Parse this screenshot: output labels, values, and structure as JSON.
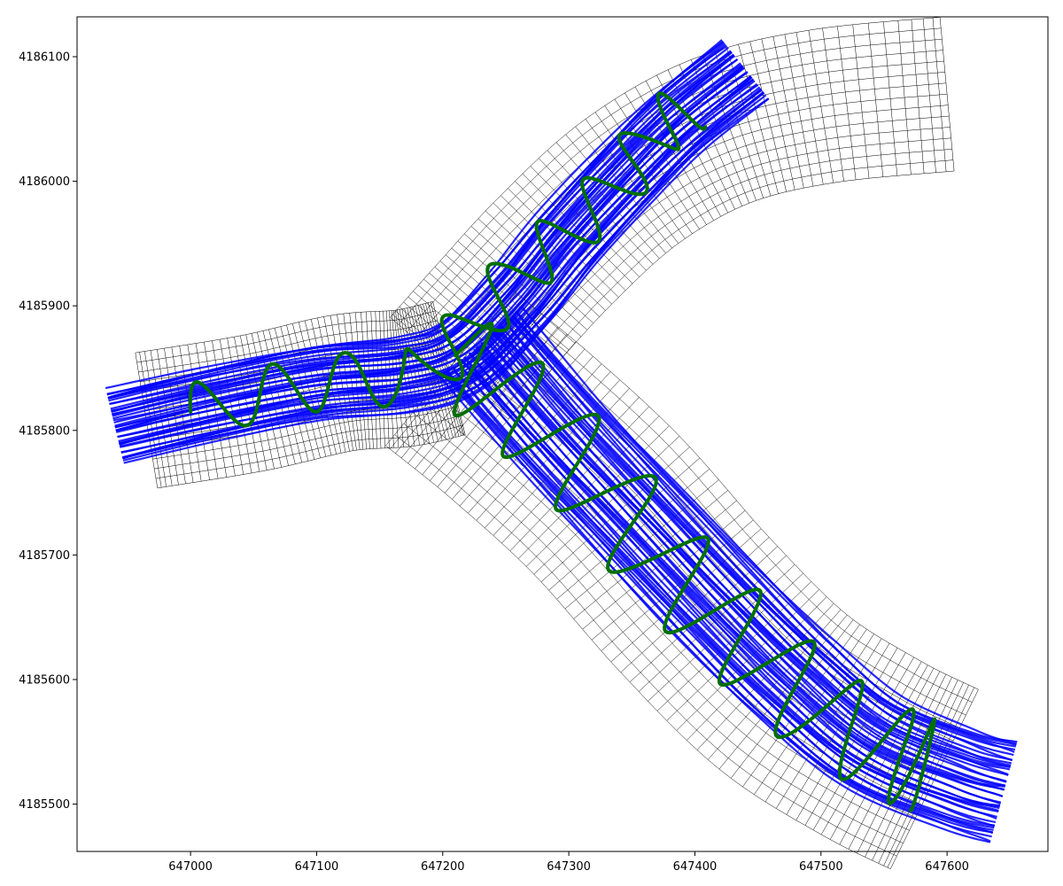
{
  "chart_data": {
    "type": "line",
    "title": "",
    "xlabel": "",
    "ylabel": "",
    "xlim": [
      646910,
      647680
    ],
    "ylim": [
      4185462,
      4186132
    ],
    "x_ticks": [
      647000,
      647100,
      647200,
      647300,
      647400,
      647500,
      647600
    ],
    "x_tick_labels": [
      "647000",
      "647100",
      "647200",
      "647300",
      "647400",
      "647500",
      "647600"
    ],
    "y_ticks": [
      4185500,
      4185600,
      4185700,
      4185800,
      4185900,
      4186000,
      4186100
    ],
    "y_tick_labels": [
      "4185500",
      "4185600",
      "4185700",
      "4185800",
      "4185900",
      "4186000",
      "4186100"
    ],
    "grid": false,
    "legend": "none",
    "colors": {
      "mesh": "#000000",
      "tracks": "#0000ff",
      "survey": "#007000"
    },
    "mesh": {
      "description_free": true,
      "branches": [
        {
          "centerline": [
            [
              646965,
              4185808
            ],
            [
              647050,
              4185822
            ],
            [
              647120,
              4185838
            ],
            [
              647170,
              4185842
            ],
            [
              647205,
              4185850
            ]
          ],
          "half_width": 55
        },
        {
          "centerline": [
            [
              647205,
              4185850
            ],
            [
              647240,
              4185890
            ],
            [
              647290,
              4185945
            ],
            [
              647350,
              4186000
            ],
            [
              647420,
              4186040
            ],
            [
              647500,
              4186060
            ],
            [
              647600,
              4186070
            ]
          ],
          "half_width": 62
        },
        {
          "centerline": [
            [
              647205,
              4185850
            ],
            [
              647260,
              4185805
            ],
            [
              647330,
              4185740
            ],
            [
              647400,
              4185660
            ],
            [
              647470,
              4185590
            ],
            [
              647540,
              4185545
            ],
            [
              647590,
              4185520
            ]
          ],
          "half_width": 80
        }
      ]
    },
    "series": [
      {
        "role": "tracks",
        "centerline": [
          [
            646940,
            4185803
          ],
          [
            647020,
            4185822
          ],
          [
            647100,
            4185838
          ],
          [
            647170,
            4185845
          ],
          [
            647215,
            4185860
          ],
          [
            647260,
            4185905
          ],
          [
            647300,
            4185955
          ],
          [
            647350,
            4186010
          ],
          [
            647390,
            4186050
          ],
          [
            647440,
            4186090
          ]
        ],
        "half_width": 30
      },
      {
        "role": "tracks",
        "centerline": [
          [
            647230,
            4185870
          ],
          [
            647290,
            4185800
          ],
          [
            647350,
            4185735
          ],
          [
            647420,
            4185660
          ],
          [
            647480,
            4185600
          ],
          [
            647540,
            4185550
          ],
          [
            647610,
            4185520
          ],
          [
            647645,
            4185510
          ]
        ],
        "half_width": 42
      },
      {
        "role": "survey",
        "centerline": [
          [
            647000,
            4185815
          ],
          [
            647060,
            4185830
          ],
          [
            647120,
            4185840
          ],
          [
            647180,
            4185845
          ],
          [
            647220,
            4185880
          ],
          [
            647260,
            4185925
          ],
          [
            647300,
            4185960
          ],
          [
            647340,
            4186000
          ],
          [
            647370,
            4186040
          ],
          [
            647395,
            4186060
          ]
        ],
        "half_width": 22
      },
      {
        "role": "survey",
        "centerline": [
          [
            647210,
            4185860
          ],
          [
            647260,
            4185820
          ],
          [
            647320,
            4185760
          ],
          [
            647380,
            4185690
          ],
          [
            647440,
            4185630
          ],
          [
            647500,
            4185575
          ],
          [
            647560,
            4185540
          ],
          [
            647585,
            4185530
          ]
        ],
        "half_width": 38
      }
    ]
  }
}
